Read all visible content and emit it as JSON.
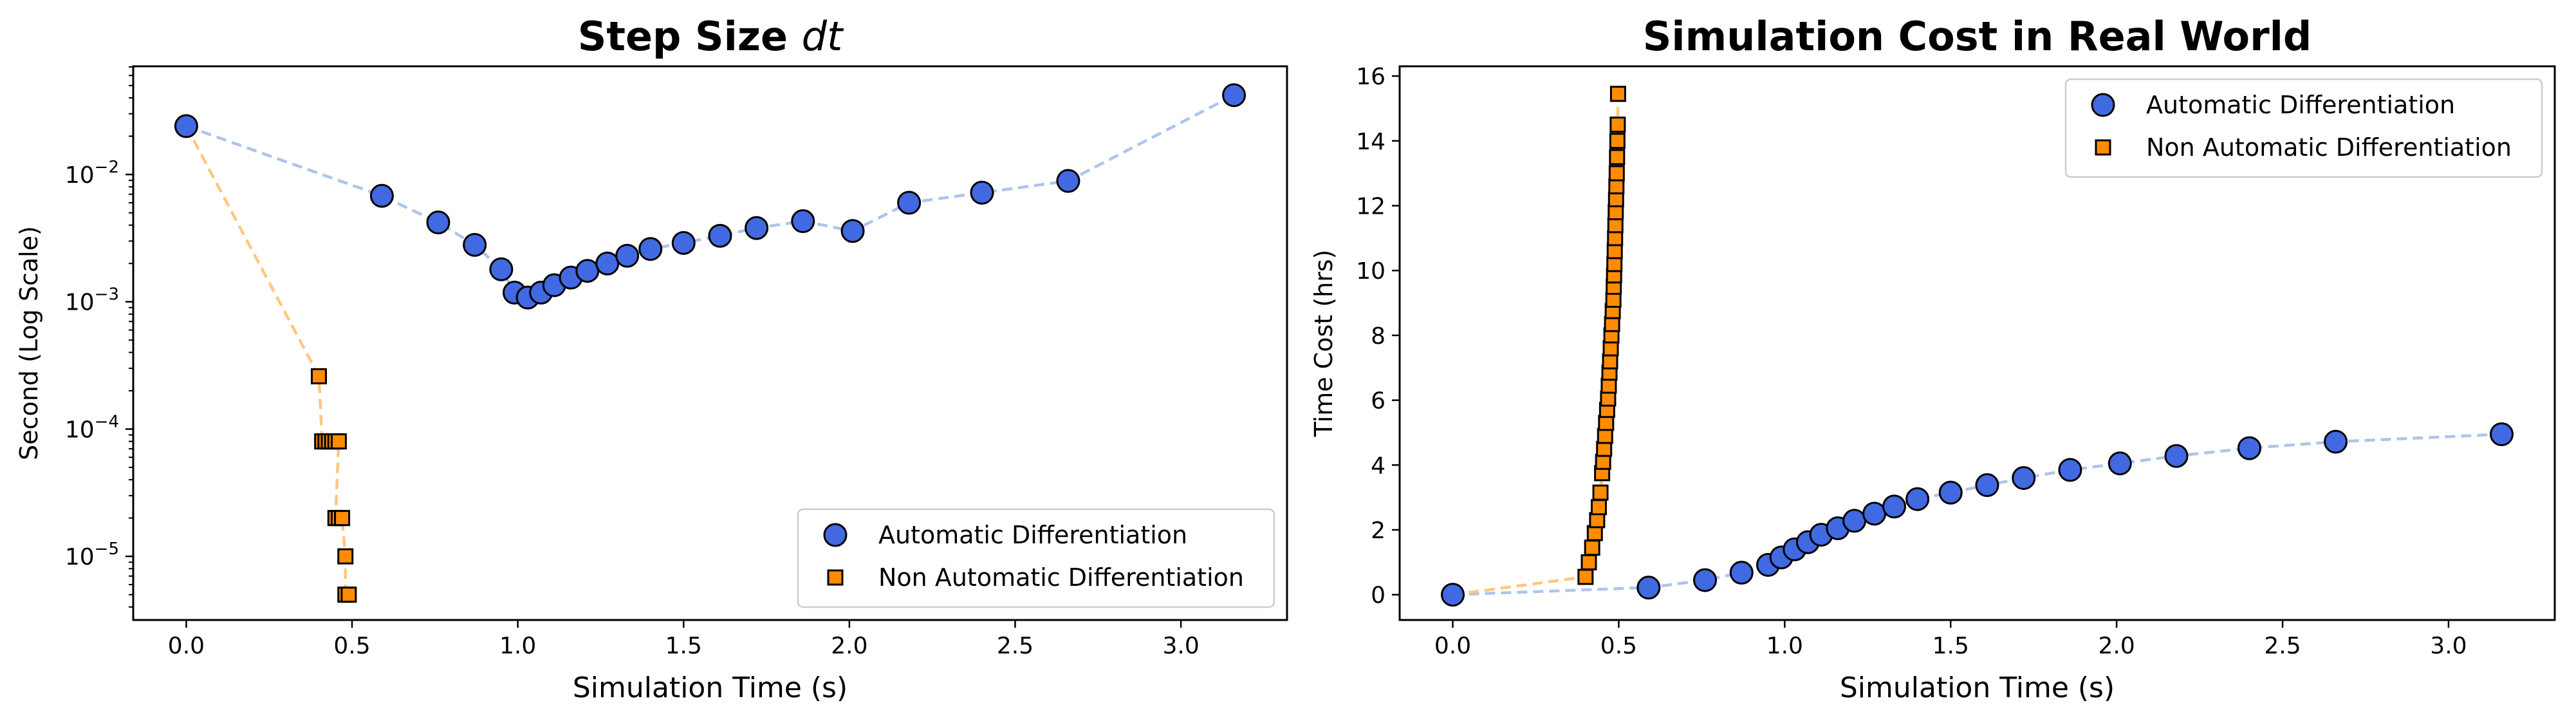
{
  "colors": {
    "auto_marker": "#4169e1",
    "auto_line": "#aec4ec",
    "non_marker": "#ff8c00",
    "non_line": "#ffc77f",
    "edge": "#000000"
  },
  "chart_data": [
    {
      "type": "scatter",
      "title_main": "Step Size ",
      "title_italic": "dt",
      "xlabel": "Simulation Time (s)",
      "ylabel": "Second (Log Scale)",
      "yscale": "log",
      "xlim": [
        -0.16,
        3.32
      ],
      "ylim_exp": [
        -5.5,
        -1.15
      ],
      "xticks": [
        "0.0",
        "0.5",
        "1.0",
        "1.5",
        "2.0",
        "2.5",
        "3.0"
      ],
      "yticks": [
        "10^-5",
        "10^-4",
        "10^-3",
        "10^-2"
      ],
      "legend_position": "lower-right",
      "series": [
        {
          "name": "Automatic Differentiation",
          "marker": "circle",
          "x": [
            0.0,
            0.59,
            0.76,
            0.87,
            0.95,
            0.99,
            1.03,
            1.07,
            1.11,
            1.16,
            1.21,
            1.27,
            1.33,
            1.4,
            1.5,
            1.61,
            1.72,
            1.86,
            2.01,
            2.18,
            2.4,
            2.66,
            3.16
          ],
          "y": [
            0.024,
            0.0068,
            0.0042,
            0.0028,
            0.0018,
            0.00118,
            0.00108,
            0.00118,
            0.00135,
            0.00155,
            0.00175,
            0.002,
            0.0023,
            0.0026,
            0.0029,
            0.0033,
            0.0038,
            0.0043,
            0.0036,
            0.006,
            0.0072,
            0.0089,
            0.042
          ]
        },
        {
          "name": "Non Automatic Differentiation",
          "marker": "square",
          "x": [
            0.0,
            0.4,
            0.41,
            0.42,
            0.43,
            0.44,
            0.45,
            0.46,
            0.45,
            0.46,
            0.47,
            0.48,
            0.48,
            0.49
          ],
          "y": [
            0.024,
            0.00026,
            8e-05,
            8e-05,
            8e-05,
            8e-05,
            8e-05,
            8e-05,
            2e-05,
            2e-05,
            2e-05,
            1e-05,
            5e-06,
            5e-06
          ]
        }
      ]
    },
    {
      "type": "scatter",
      "title": "Simulation Cost in Real World",
      "xlabel": "Simulation Time (s)",
      "ylabel": "Time Cost (hrs)",
      "xlim": [
        -0.16,
        3.32
      ],
      "ylim": [
        -0.78,
        16.3
      ],
      "xticks": [
        "0.0",
        "0.5",
        "1.0",
        "1.5",
        "2.0",
        "2.5",
        "3.0"
      ],
      "yticks": [
        "0",
        "2",
        "4",
        "6",
        "8",
        "10",
        "12",
        "14",
        "16"
      ],
      "legend_position": "upper-right",
      "series": [
        {
          "name": "Automatic Differentiation",
          "marker": "circle",
          "x": [
            0.0,
            0.59,
            0.76,
            0.87,
            0.95,
            0.99,
            1.03,
            1.07,
            1.11,
            1.16,
            1.21,
            1.27,
            1.33,
            1.4,
            1.5,
            1.61,
            1.72,
            1.86,
            2.01,
            2.18,
            2.4,
            2.66,
            3.16
          ],
          "y": [
            0.0,
            0.22,
            0.45,
            0.68,
            0.92,
            1.15,
            1.4,
            1.62,
            1.85,
            2.05,
            2.28,
            2.5,
            2.72,
            2.95,
            3.15,
            3.38,
            3.6,
            3.85,
            4.05,
            4.28,
            4.52,
            4.72,
            4.95
          ]
        },
        {
          "name": "Non Automatic Differentiation",
          "marker": "square",
          "x": [
            0.0,
            0.4,
            0.41,
            0.42,
            0.428,
            0.435,
            0.44,
            0.445,
            0.45,
            0.453,
            0.456,
            0.459,
            0.462,
            0.465,
            0.468,
            0.47,
            0.472,
            0.474,
            0.476,
            0.478,
            0.48,
            0.482,
            0.484,
            0.485,
            0.486,
            0.487,
            0.488,
            0.489,
            0.49,
            0.491,
            0.492,
            0.493,
            0.494,
            0.495,
            0.496,
            0.497,
            0.498
          ],
          "y": [
            0.0,
            0.55,
            1.0,
            1.45,
            1.9,
            2.3,
            2.7,
            3.15,
            3.75,
            4.1,
            4.5,
            4.9,
            5.3,
            5.7,
            6.05,
            6.45,
            6.85,
            7.2,
            7.6,
            8.0,
            8.35,
            8.75,
            9.1,
            9.5,
            9.85,
            10.2,
            10.6,
            11.0,
            11.4,
            11.8,
            12.2,
            12.6,
            13.0,
            13.5,
            14.0,
            14.5,
            15.45
          ]
        }
      ]
    }
  ]
}
